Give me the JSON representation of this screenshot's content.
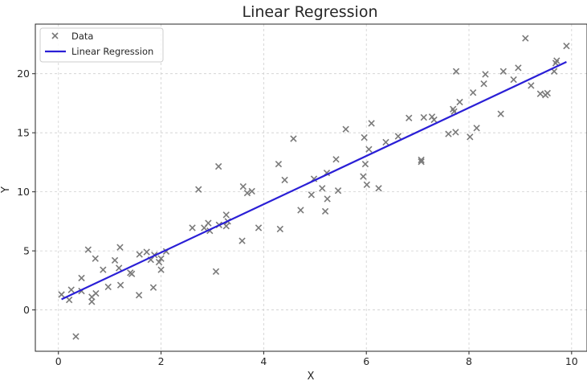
{
  "chart_data": {
    "type": "scatter",
    "title": "Linear Regression",
    "xlabel": "X",
    "ylabel": "Y",
    "xlim": [
      -0.45,
      10.3
    ],
    "ylim": [
      -3.5,
      24.2
    ],
    "xticks": [
      0,
      2,
      4,
      6,
      8,
      10
    ],
    "yticks": [
      0,
      5,
      10,
      15,
      20
    ],
    "grid": true,
    "legend_position": "top-left",
    "series": [
      {
        "name": "Data",
        "kind": "scatter",
        "marker": "x",
        "color": "#7a7a7a",
        "points": [
          [
            0.06,
            1.3
          ],
          [
            0.21,
            0.85
          ],
          [
            0.25,
            1.7
          ],
          [
            0.34,
            -2.25
          ],
          [
            0.45,
            2.7
          ],
          [
            0.45,
            1.6
          ],
          [
            0.58,
            5.1
          ],
          [
            0.65,
            0.7
          ],
          [
            0.65,
            1.1
          ],
          [
            0.72,
            4.35
          ],
          [
            0.73,
            1.4
          ],
          [
            0.87,
            3.4
          ],
          [
            0.97,
            1.95
          ],
          [
            1.1,
            4.2
          ],
          [
            1.18,
            3.55
          ],
          [
            1.2,
            5.3
          ],
          [
            1.21,
            2.1
          ],
          [
            1.4,
            3.15
          ],
          [
            1.43,
            3.05
          ],
          [
            1.57,
            1.25
          ],
          [
            1.58,
            4.7
          ],
          [
            1.72,
            4.9
          ],
          [
            1.8,
            4.25
          ],
          [
            1.85,
            1.9
          ],
          [
            1.87,
            4.65
          ],
          [
            1.96,
            4.05
          ],
          [
            2.0,
            4.35
          ],
          [
            2.0,
            3.4
          ],
          [
            2.1,
            4.95
          ],
          [
            2.61,
            6.95
          ],
          [
            2.73,
            10.2
          ],
          [
            2.84,
            6.95
          ],
          [
            2.92,
            7.35
          ],
          [
            2.95,
            6.7
          ],
          [
            3.07,
            3.25
          ],
          [
            3.12,
            12.15
          ],
          [
            3.13,
            7.2
          ],
          [
            3.27,
            8.05
          ],
          [
            3.27,
            7.1
          ],
          [
            3.3,
            7.5
          ],
          [
            3.58,
            5.85
          ],
          [
            3.6,
            10.45
          ],
          [
            3.68,
            9.9
          ],
          [
            3.77,
            10.05
          ],
          [
            3.9,
            6.95
          ],
          [
            4.29,
            12.35
          ],
          [
            4.32,
            6.85
          ],
          [
            4.41,
            11.0
          ],
          [
            4.58,
            14.5
          ],
          [
            4.72,
            8.45
          ],
          [
            4.93,
            9.75
          ],
          [
            4.98,
            11.1
          ],
          [
            5.14,
            10.3
          ],
          [
            5.2,
            8.35
          ],
          [
            5.23,
            11.6
          ],
          [
            5.24,
            9.4
          ],
          [
            5.41,
            12.75
          ],
          [
            5.45,
            10.1
          ],
          [
            5.6,
            15.3
          ],
          [
            5.94,
            11.3
          ],
          [
            5.96,
            14.6
          ],
          [
            5.98,
            12.35
          ],
          [
            6.01,
            10.6
          ],
          [
            6.05,
            13.6
          ],
          [
            6.1,
            15.8
          ],
          [
            6.24,
            10.3
          ],
          [
            6.38,
            14.2
          ],
          [
            6.62,
            14.7
          ],
          [
            6.83,
            16.25
          ],
          [
            7.07,
            12.55
          ],
          [
            7.07,
            12.7
          ],
          [
            7.12,
            16.3
          ],
          [
            7.28,
            16.35
          ],
          [
            7.32,
            16.1
          ],
          [
            7.6,
            14.9
          ],
          [
            7.69,
            17.0
          ],
          [
            7.71,
            16.8
          ],
          [
            7.74,
            15.05
          ],
          [
            7.75,
            20.2
          ],
          [
            7.82,
            17.6
          ],
          [
            8.02,
            14.65
          ],
          [
            8.08,
            18.4
          ],
          [
            8.15,
            15.4
          ],
          [
            8.29,
            19.15
          ],
          [
            8.32,
            19.95
          ],
          [
            8.62,
            16.6
          ],
          [
            8.67,
            20.2
          ],
          [
            8.87,
            19.5
          ],
          [
            8.96,
            20.5
          ],
          [
            9.1,
            23.0
          ],
          [
            9.21,
            19.0
          ],
          [
            9.39,
            18.3
          ],
          [
            9.49,
            18.2
          ],
          [
            9.53,
            18.35
          ],
          [
            9.66,
            20.2
          ],
          [
            9.69,
            20.9
          ],
          [
            9.71,
            21.1
          ],
          [
            9.9,
            22.35
          ]
        ]
      },
      {
        "name": "Linear Regression",
        "kind": "line",
        "color": "#2a1fd6",
        "points": [
          [
            0.06,
            0.9
          ],
          [
            9.9,
            21.0
          ]
        ]
      }
    ]
  }
}
